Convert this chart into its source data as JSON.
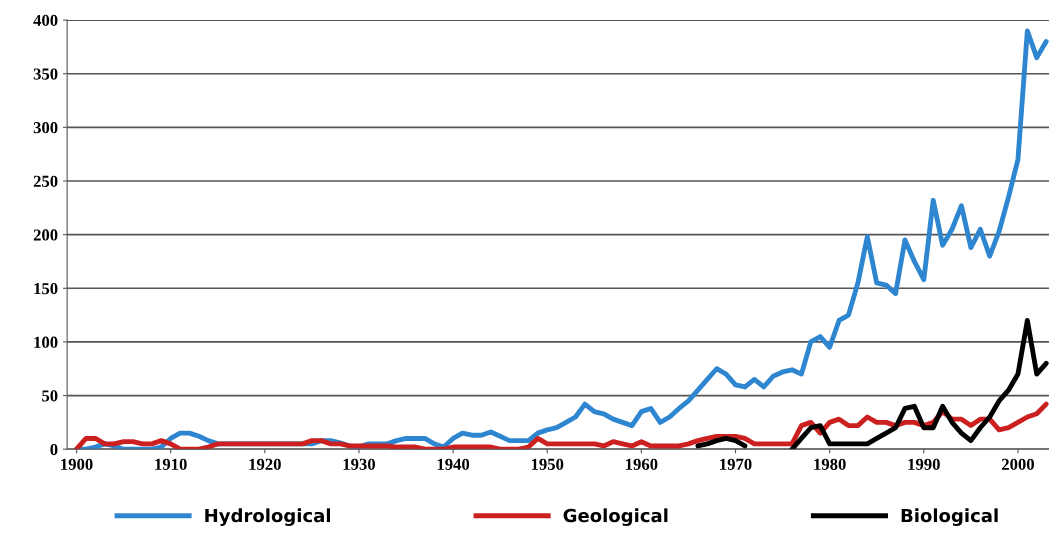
{
  "chart_data": {
    "type": "line",
    "x": [
      1900,
      1901,
      1902,
      1903,
      1904,
      1905,
      1906,
      1907,
      1908,
      1909,
      1910,
      1911,
      1912,
      1913,
      1914,
      1915,
      1916,
      1917,
      1918,
      1919,
      1920,
      1921,
      1922,
      1923,
      1924,
      1925,
      1926,
      1927,
      1928,
      1929,
      1930,
      1931,
      1932,
      1933,
      1934,
      1935,
      1936,
      1937,
      1938,
      1939,
      1940,
      1941,
      1942,
      1943,
      1944,
      1945,
      1946,
      1947,
      1948,
      1949,
      1950,
      1951,
      1952,
      1953,
      1954,
      1955,
      1956,
      1957,
      1958,
      1959,
      1960,
      1961,
      1962,
      1963,
      1964,
      1965,
      1966,
      1967,
      1968,
      1969,
      1970,
      1971,
      1972,
      1973,
      1974,
      1975,
      1976,
      1977,
      1978,
      1979,
      1980,
      1981,
      1982,
      1983,
      1984,
      1985,
      1986,
      1987,
      1988,
      1989,
      1990,
      1991,
      1992,
      1993,
      1994,
      1995,
      1996,
      1997,
      1998,
      1999,
      2000,
      2001,
      2002,
      2003
    ],
    "series": [
      {
        "name": "Hydrological",
        "color": "#2f86d0",
        "values": [
          0,
          0,
          2,
          5,
          3,
          0,
          0,
          0,
          0,
          2,
          10,
          15,
          15,
          12,
          8,
          5,
          5,
          5,
          5,
          5,
          5,
          5,
          5,
          5,
          5,
          5,
          8,
          8,
          6,
          3,
          2,
          5,
          5,
          5,
          8,
          10,
          10,
          10,
          5,
          2,
          10,
          15,
          13,
          13,
          16,
          12,
          8,
          8,
          8,
          15,
          18,
          20,
          25,
          30,
          42,
          35,
          33,
          28,
          25,
          22,
          35,
          38,
          25,
          30,
          38,
          45,
          55,
          65,
          75,
          70,
          60,
          58,
          65,
          58,
          68,
          72,
          74,
          70,
          100,
          105,
          95,
          120,
          125,
          155,
          198,
          155,
          153,
          145,
          195,
          175,
          158,
          232,
          190,
          205,
          227,
          188,
          205,
          180,
          203,
          235,
          270,
          390,
          365,
          380
        ]
      },
      {
        "name": "Geological",
        "color": "#cc1f1f",
        "values": [
          0,
          10,
          10,
          5,
          5,
          7,
          7,
          5,
          5,
          8,
          5,
          0,
          0,
          0,
          2,
          5,
          5,
          5,
          5,
          5,
          5,
          5,
          5,
          5,
          5,
          8,
          8,
          5,
          5,
          3,
          3,
          3,
          3,
          3,
          2,
          2,
          2,
          0,
          0,
          0,
          2,
          2,
          2,
          2,
          2,
          0,
          0,
          0,
          2,
          10,
          5,
          5,
          5,
          5,
          5,
          5,
          3,
          7,
          5,
          3,
          7,
          3,
          3,
          3,
          3,
          5,
          8,
          10,
          12,
          12,
          12,
          10,
          5,
          5,
          5,
          5,
          5,
          22,
          25,
          15,
          25,
          28,
          22,
          22,
          30,
          25,
          25,
          22,
          25,
          25,
          22,
          25,
          35,
          28,
          28,
          22,
          28,
          28,
          18,
          20,
          25,
          30,
          33,
          42
        ]
      },
      {
        "name": "Biological",
        "color": "#000000",
        "values": [
          null,
          null,
          null,
          null,
          null,
          null,
          null,
          null,
          null,
          null,
          null,
          null,
          null,
          null,
          null,
          null,
          null,
          null,
          null,
          null,
          null,
          null,
          null,
          null,
          null,
          null,
          null,
          null,
          null,
          null,
          null,
          null,
          null,
          null,
          null,
          null,
          null,
          null,
          null,
          null,
          null,
          null,
          null,
          null,
          null,
          null,
          null,
          null,
          null,
          null,
          null,
          null,
          null,
          null,
          null,
          null,
          null,
          null,
          null,
          null,
          null,
          null,
          null,
          null,
          null,
          null,
          3,
          5,
          8,
          10,
          8,
          3,
          null,
          null,
          null,
          null,
          0,
          10,
          20,
          22,
          5,
          5,
          5,
          5,
          5,
          10,
          15,
          20,
          38,
          40,
          20,
          20,
          40,
          25,
          15,
          8,
          20,
          30,
          45,
          55,
          70,
          120,
          70,
          80
        ]
      }
    ],
    "xlim": [
      1899,
      2003.3
    ],
    "xticks": [
      1900,
      1910,
      1920,
      1930,
      1940,
      1950,
      1960,
      1970,
      1980,
      1990,
      2000
    ],
    "ylim": [
      0,
      400
    ],
    "yticks": [
      0,
      50,
      100,
      150,
      200,
      250,
      300,
      350,
      400
    ],
    "grid": "y",
    "legend": "bottom",
    "marker": "none",
    "line_style": "solid"
  }
}
